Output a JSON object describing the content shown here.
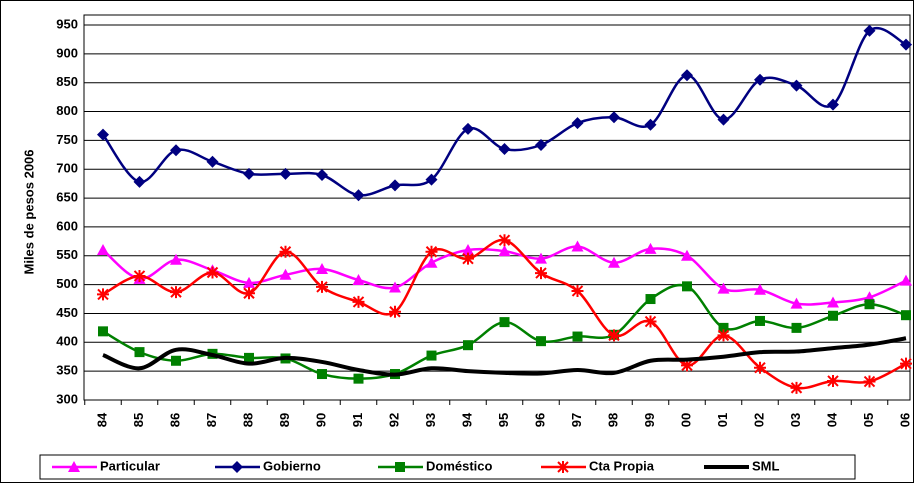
{
  "chart_data": {
    "type": "line",
    "y_label": "Miles de pesos 2006",
    "categories": [
      "84",
      "85",
      "86",
      "87",
      "88",
      "89",
      "90",
      "91",
      "92",
      "93",
      "94",
      "95",
      "96",
      "97",
      "98",
      "99",
      "00",
      "01",
      "02",
      "03",
      "04",
      "05",
      "06"
    ],
    "ylim": [
      300,
      950
    ],
    "yticks": [
      300,
      350,
      400,
      450,
      500,
      550,
      600,
      650,
      700,
      750,
      800,
      850,
      900,
      950
    ],
    "grid": true,
    "legend": "bottom",
    "series": [
      {
        "name": "Particular",
        "color": "#ff00ff",
        "marker": "triangle",
        "values": [
          560,
          510,
          543,
          525,
          503,
          517,
          527,
          508,
          495,
          538,
          560,
          558,
          545,
          566,
          538,
          562,
          550,
          493,
          491,
          467,
          469,
          478,
          507
        ]
      },
      {
        "name": "Gobierno",
        "color": "#000080",
        "marker": "diamond",
        "values": [
          760,
          678,
          733,
          713,
          692,
          692,
          690,
          655,
          672,
          682,
          770,
          735,
          742,
          780,
          790,
          777,
          863,
          786,
          855,
          845,
          812,
          940,
          916
        ]
      },
      {
        "name": "Doméstico",
        "color": "#008000",
        "marker": "square",
        "values": [
          419,
          383,
          368,
          380,
          373,
          372,
          345,
          337,
          345,
          377,
          395,
          435,
          402,
          410,
          413,
          475,
          497,
          425,
          437,
          425,
          446,
          466,
          447
        ]
      },
      {
        "name": "Cta Propia",
        "color": "#ff0000",
        "marker": "star",
        "values": [
          483,
          515,
          487,
          521,
          485,
          557,
          496,
          470,
          453,
          557,
          545,
          577,
          520,
          489,
          412,
          436,
          360,
          412,
          356,
          321,
          333,
          332,
          363
        ]
      },
      {
        "name": "SML",
        "color": "#000000",
        "marker": "none",
        "values": [
          378,
          355,
          387,
          378,
          363,
          373,
          366,
          352,
          344,
          355,
          350,
          347,
          346,
          352,
          347,
          368,
          370,
          375,
          383,
          384,
          390,
          396,
          407
        ]
      }
    ]
  }
}
